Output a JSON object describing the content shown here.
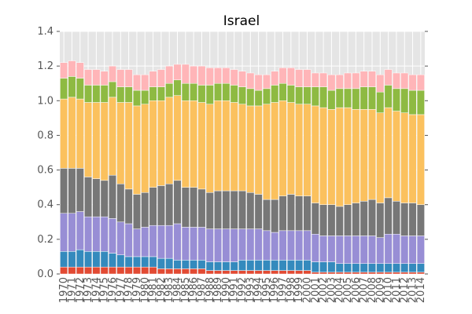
{
  "chart_data": {
    "type": "bar",
    "stacked": true,
    "title": "Israel",
    "xlabel": "",
    "ylabel": "",
    "ylim": [
      0,
      1.4
    ],
    "yticks": [
      0.0,
      0.2,
      0.4,
      0.6,
      0.8,
      1.0,
      1.2,
      1.4
    ],
    "ytick_labels": [
      "0.0",
      "0.2",
      "0.4",
      "0.6",
      "0.8",
      "1.0",
      "1.2",
      "1.4"
    ],
    "grid": true,
    "legend": "none",
    "background_color": "#e5e5e5",
    "categories": [
      "1970",
      "1971",
      "1972",
      "1973",
      "1974",
      "1975",
      "1976",
      "1977",
      "1978",
      "1979",
      "1980",
      "1981",
      "1982",
      "1983",
      "1984",
      "1985",
      "1986",
      "1987",
      "1988",
      "1989",
      "1990",
      "1991",
      "1992",
      "1993",
      "1994",
      "1995",
      "1996",
      "1997",
      "1998",
      "1999",
      "2000",
      "2001",
      "2002",
      "2003",
      "2004",
      "2005",
      "2006",
      "2007",
      "2008",
      "2009",
      "2010",
      "2011",
      "2012",
      "2013",
      "2014"
    ],
    "series": [
      {
        "color": "#e24a33",
        "values": [
          0.04,
          0.04,
          0.04,
          0.04,
          0.04,
          0.04,
          0.04,
          0.04,
          0.04,
          0.04,
          0.04,
          0.04,
          0.03,
          0.03,
          0.03,
          0.03,
          0.03,
          0.03,
          0.02,
          0.02,
          0.02,
          0.02,
          0.02,
          0.02,
          0.02,
          0.02,
          0.02,
          0.02,
          0.02,
          0.02,
          0.02,
          0.01,
          0.01,
          0.01,
          0.01,
          0.01,
          0.01,
          0.01,
          0.01,
          0.01,
          0.01,
          0.01,
          0.01,
          0.01,
          0.01
        ]
      },
      {
        "color": "#348abd",
        "values": [
          0.09,
          0.09,
          0.1,
          0.09,
          0.09,
          0.09,
          0.08,
          0.07,
          0.06,
          0.06,
          0.06,
          0.06,
          0.06,
          0.06,
          0.05,
          0.05,
          0.05,
          0.05,
          0.05,
          0.05,
          0.05,
          0.05,
          0.06,
          0.06,
          0.06,
          0.06,
          0.06,
          0.06,
          0.06,
          0.06,
          0.06,
          0.06,
          0.06,
          0.06,
          0.05,
          0.05,
          0.05,
          0.05,
          0.05,
          0.05,
          0.05,
          0.05,
          0.05,
          0.05,
          0.05
        ]
      },
      {
        "color": "#988ed5",
        "values": [
          0.22,
          0.22,
          0.22,
          0.2,
          0.2,
          0.2,
          0.2,
          0.19,
          0.19,
          0.16,
          0.17,
          0.18,
          0.19,
          0.19,
          0.21,
          0.19,
          0.19,
          0.19,
          0.19,
          0.19,
          0.19,
          0.19,
          0.18,
          0.18,
          0.18,
          0.17,
          0.16,
          0.17,
          0.17,
          0.17,
          0.17,
          0.16,
          0.15,
          0.15,
          0.16,
          0.16,
          0.16,
          0.16,
          0.16,
          0.15,
          0.17,
          0.17,
          0.16,
          0.16,
          0.16
        ]
      },
      {
        "color": "#777777",
        "values": [
          0.26,
          0.26,
          0.25,
          0.23,
          0.22,
          0.21,
          0.25,
          0.22,
          0.2,
          0.2,
          0.2,
          0.22,
          0.23,
          0.24,
          0.25,
          0.23,
          0.23,
          0.22,
          0.21,
          0.22,
          0.22,
          0.22,
          0.22,
          0.21,
          0.2,
          0.18,
          0.19,
          0.2,
          0.21,
          0.2,
          0.2,
          0.18,
          0.18,
          0.18,
          0.17,
          0.18,
          0.19,
          0.2,
          0.21,
          0.2,
          0.21,
          0.19,
          0.19,
          0.19,
          0.18
        ]
      },
      {
        "color": "#fbc15e",
        "values": [
          0.4,
          0.41,
          0.4,
          0.43,
          0.44,
          0.45,
          0.45,
          0.47,
          0.5,
          0.51,
          0.51,
          0.5,
          0.49,
          0.5,
          0.49,
          0.5,
          0.5,
          0.5,
          0.51,
          0.52,
          0.52,
          0.51,
          0.5,
          0.5,
          0.51,
          0.55,
          0.56,
          0.55,
          0.53,
          0.53,
          0.53,
          0.56,
          0.56,
          0.55,
          0.57,
          0.56,
          0.54,
          0.53,
          0.52,
          0.52,
          0.52,
          0.52,
          0.52,
          0.51,
          0.52
        ]
      },
      {
        "color": "#8eba42",
        "values": [
          0.12,
          0.12,
          0.12,
          0.1,
          0.1,
          0.1,
          0.09,
          0.09,
          0.09,
          0.09,
          0.08,
          0.08,
          0.08,
          0.08,
          0.09,
          0.1,
          0.1,
          0.1,
          0.11,
          0.1,
          0.1,
          0.1,
          0.1,
          0.1,
          0.09,
          0.09,
          0.1,
          0.1,
          0.1,
          0.1,
          0.1,
          0.11,
          0.12,
          0.11,
          0.11,
          0.11,
          0.12,
          0.13,
          0.13,
          0.12,
          0.13,
          0.13,
          0.14,
          0.14,
          0.14
        ]
      },
      {
        "color": "#ffb5b8",
        "values": [
          0.09,
          0.09,
          0.09,
          0.09,
          0.09,
          0.08,
          0.09,
          0.1,
          0.1,
          0.09,
          0.09,
          0.09,
          0.1,
          0.1,
          0.09,
          0.11,
          0.1,
          0.11,
          0.1,
          0.09,
          0.09,
          0.09,
          0.09,
          0.09,
          0.09,
          0.08,
          0.08,
          0.09,
          0.1,
          0.1,
          0.1,
          0.08,
          0.08,
          0.09,
          0.08,
          0.09,
          0.09,
          0.09,
          0.09,
          0.1,
          0.09,
          0.09,
          0.09,
          0.09,
          0.09
        ]
      }
    ]
  }
}
